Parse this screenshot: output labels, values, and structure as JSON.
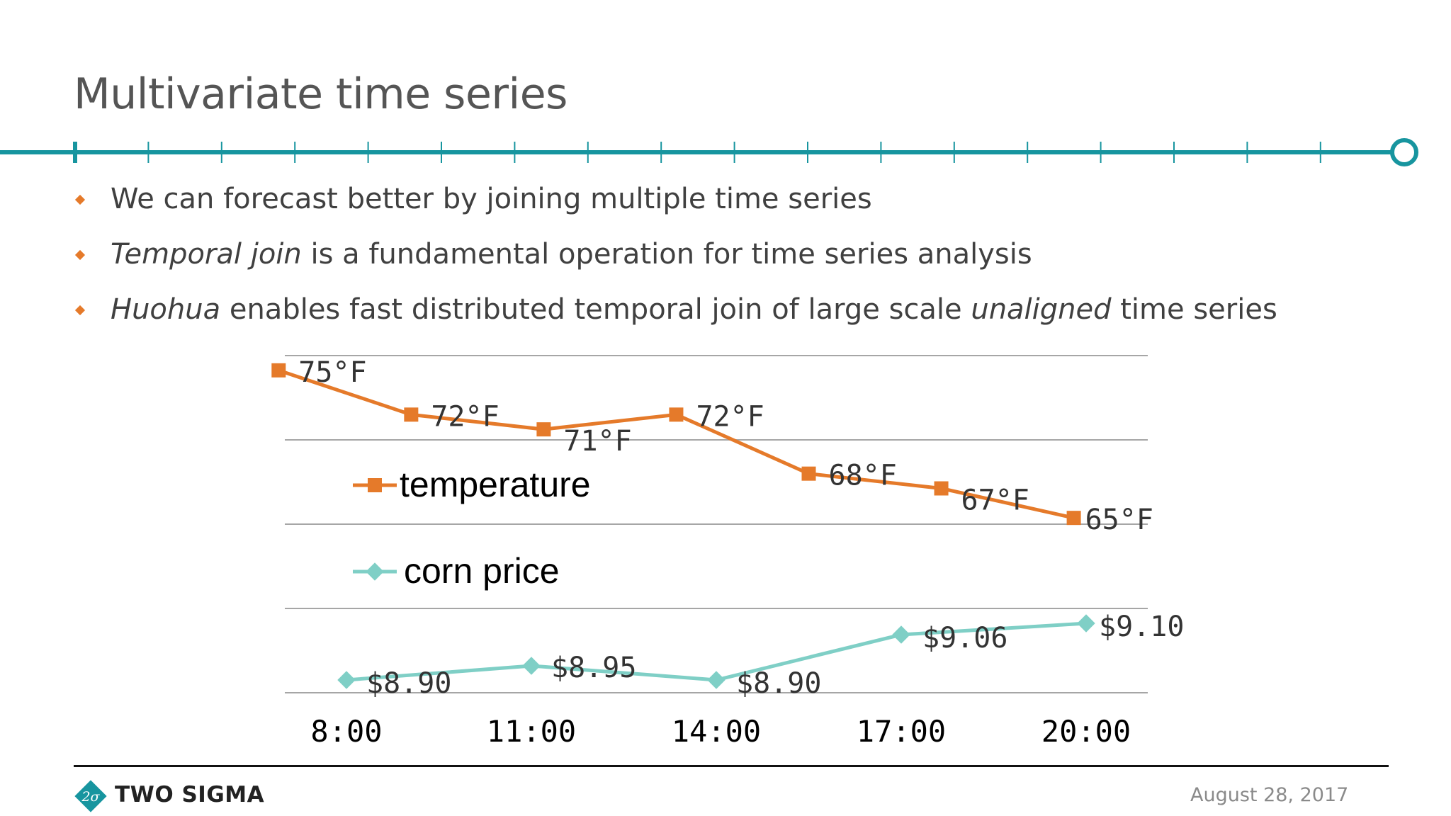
{
  "slide": {
    "title": "Multivariate time series",
    "bullets": [
      {
        "prefix_italic": "",
        "text": "We can forecast better by joining multiple time series",
        "mid_italic": "",
        "suffix": ""
      },
      {
        "prefix_italic": "Temporal join",
        "text": " is a fundamental operation for time series analysis",
        "mid_italic": "",
        "suffix": ""
      },
      {
        "prefix_italic": "Huohua",
        "text": " enables fast distributed temporal join of large scale ",
        "mid_italic": "unaligned",
        "suffix": " time series"
      }
    ]
  },
  "colors": {
    "accent_teal": "#17959f",
    "temperature": "#e57a2a",
    "corn_price": "#7fcfc6",
    "bullet": "#e57a2a"
  },
  "chart_data": {
    "type": "line",
    "x_ticks": [
      "8:00",
      "11:00",
      "14:00",
      "17:00",
      "20:00"
    ],
    "x_tick_hours": [
      8,
      11,
      14,
      17,
      20
    ],
    "xlim_hours": [
      7,
      21
    ],
    "series": [
      {
        "name": "temperature",
        "marker": "square",
        "x_hours": [
          6.9,
          9.05,
          11.2,
          13.35,
          15.5,
          17.65,
          19.8
        ],
        "values": [
          75,
          72,
          71,
          72,
          68,
          67,
          65
        ],
        "labels": [
          "75°F",
          "72°F",
          "71°F",
          "72°F",
          "68°F",
          "67°F",
          "65°F"
        ],
        "ylim": [
          64,
          76
        ]
      },
      {
        "name": "corn price",
        "marker": "diamond",
        "x_hours": [
          8,
          11,
          14,
          17,
          20
        ],
        "values": [
          8.9,
          8.95,
          8.9,
          9.06,
          9.1
        ],
        "labels": [
          "$8.90",
          "$8.95",
          "$8.90",
          "$9.06",
          "$9.10"
        ],
        "ylim": [
          8.8,
          9.3
        ]
      }
    ],
    "legend": [
      "temperature",
      "corn price"
    ],
    "legend_position": "left-middle",
    "gridlines": true
  },
  "footer": {
    "brand": "TWO SIGMA",
    "logo_text": "2σ",
    "date": "August 28, 2017"
  }
}
